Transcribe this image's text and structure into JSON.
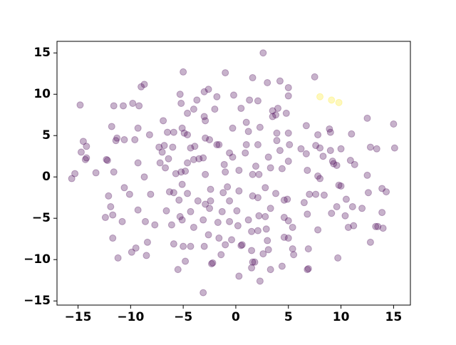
{
  "chart_data": {
    "type": "scatter",
    "xlim": [
      -17,
      16.6
    ],
    "ylim": [
      -15.5,
      16.4
    ],
    "xticks": [
      {
        "value": -15,
        "label": "−15"
      },
      {
        "value": -10,
        "label": "−10"
      },
      {
        "value": -5,
        "label": "−5"
      },
      0,
      5,
      10,
      15
    ],
    "yticks": [
      {
        "value": -15,
        "label": "−15"
      },
      {
        "value": -10,
        "label": "−10"
      },
      {
        "value": -5,
        "label": "−5"
      },
      0,
      5,
      10,
      15
    ],
    "opacity": 0.3,
    "series": [
      {
        "color": "#440154",
        "x": [
          2.6,
          -5,
          -1,
          7.5,
          1.6,
          -8.7,
          -9,
          -2.6,
          -3,
          3,
          4.2,
          5,
          -5.3,
          5,
          1.3,
          2.1,
          -3.7,
          -5.2,
          -1.8,
          -0.2,
          -14.8,
          -11.6,
          -10.7,
          -9.8,
          -9.2,
          -2,
          -4,
          -4.6,
          0.5,
          3.5,
          4,
          3.8,
          3.5,
          4.8,
          -6.9,
          -3,
          -2.9,
          12.5,
          -9.3,
          -9.6,
          -11.8,
          -11.4,
          -11.3,
          -6.5,
          -5.9,
          -5.1,
          -4.6,
          -4.9,
          -2.9,
          -0.3,
          1,
          1.2,
          2.3,
          3.9,
          5,
          6.7,
          7.8,
          8.9,
          9,
          11,
          15,
          -8.2,
          -14.5,
          -14.7,
          -14.3,
          -14.2,
          -14.2,
          -12.2,
          -12.3,
          -10.6,
          -9.3,
          -7,
          -7.3,
          -6.8,
          -6.4,
          -6,
          -4.3,
          -3.9,
          -4,
          -3.1,
          -3.5,
          -2.5,
          -1.6,
          -1.8,
          -0.6,
          -0.3,
          0.9,
          1,
          2.1,
          3.1,
          3.9,
          4.2,
          5.1,
          5,
          6.2,
          6.7,
          7.6,
          8,
          9,
          8.3,
          9.2,
          10,
          10.9,
          11.3,
          12.8,
          13.4,
          15.1,
          -15.6,
          -15.3,
          -13.3,
          -11.6,
          -8.7,
          -7.2,
          -6.7,
          -5.7,
          -5.2,
          -4.6,
          -4.8,
          -2.9,
          -1.1,
          -1,
          0.3,
          1.6,
          1.9,
          2.2,
          3.3,
          4.4,
          6.8,
          7.8,
          9.3,
          9.6,
          8,
          9.8,
          10,
          12.5,
          13.9,
          14.3,
          12.6,
          10.5,
          -12.1,
          -11.9,
          -10.6,
          -10.1,
          -8.1,
          -6.3,
          -5.9,
          -5.4,
          -5.1,
          -4.6,
          -3.6,
          -2.4,
          -2.4,
          -1.2,
          -0.8,
          -0.6,
          0.3,
          1.6,
          2.1,
          2.8,
          3.8,
          4.6,
          4.9,
          6.5,
          7,
          7.6,
          8.4,
          9.6,
          11.1,
          12,
          -2.9,
          -12.4,
          -11.7,
          -10.8,
          -9.3,
          -8.6,
          -7.7,
          -6.6,
          -6.1,
          -5.3,
          -5.1,
          -4.3,
          -4,
          -3.1,
          -2.5,
          -1.7,
          -1.3,
          -0.6,
          0.1,
          0.2,
          1.2,
          1.5,
          2.2,
          2.8,
          3.3,
          2.9,
          2.1,
          4.6,
          5,
          5.4,
          6.8,
          7.8,
          9.1,
          10.7,
          11.2,
          13.3,
          13.5,
          14,
          13.9,
          10.4,
          4.6,
          -11.7,
          -11.2,
          -9.9,
          -9.5,
          -8.5,
          -8.4,
          -5.9,
          -5.5,
          -5,
          -4.8,
          -4.3,
          -3,
          -2.6,
          -2.3,
          -2.2,
          -1.6,
          -1,
          -0.4,
          0.6,
          0.5,
          1.5,
          1.6,
          1.8,
          2.6,
          3,
          3.3,
          4.4,
          5,
          5.4,
          5.5,
          6.8,
          6.9,
          6.9,
          9.7,
          12.8,
          0.3,
          2.3,
          1.5,
          -3.1,
          3.1,
          -1.4
        ],
        "values": [
          15,
          12.7,
          12.6,
          12.1,
          12,
          11.2,
          10.9,
          10.6,
          10.3,
          11.4,
          11.6,
          10.8,
          10,
          9.8,
          9.3,
          9.2,
          9.3,
          8.9,
          9.7,
          9.9,
          8.7,
          8.6,
          8.6,
          8.9,
          8.6,
          8.2,
          8.2,
          7.7,
          8.3,
          8,
          8.3,
          7.5,
          7.3,
          7.7,
          6.8,
          7.3,
          6.8,
          7.1,
          5.9,
          4.5,
          6.1,
          4.4,
          4.7,
          5.4,
          5.4,
          5.9,
          5.1,
          5.3,
          4.7,
          5.9,
          6.6,
          5.5,
          6,
          5.3,
          5.3,
          6.2,
          5.1,
          5.8,
          5.4,
          5.2,
          6.4,
          5.1,
          4.3,
          3,
          2.1,
          3.7,
          2.3,
          2,
          2.1,
          4.5,
          1.7,
          3,
          3.6,
          3.8,
          2.2,
          3.6,
          3.5,
          3.7,
          2.1,
          2.3,
          2.2,
          4.5,
          3.9,
          3.9,
          2.9,
          2.4,
          2.9,
          3.9,
          3.9,
          2.4,
          4.4,
          3.2,
          3.9,
          1.9,
          3.4,
          2.8,
          3.8,
          3.5,
          3.2,
          2.5,
          1.9,
          3.4,
          2,
          1.5,
          3.6,
          3.4,
          3.5,
          -0.2,
          0.4,
          0.5,
          0.6,
          0,
          1.7,
          1.1,
          0.4,
          0.6,
          1.7,
          0.7,
          0.3,
          1.5,
          0.6,
          0.8,
          0.3,
          1.3,
          0.3,
          1.1,
          1,
          0.8,
          0.1,
          1.6,
          1.4,
          -0.2,
          -1,
          -1.1,
          0.2,
          -1.4,
          -1.8,
          -1.9,
          -2.7,
          -2.3,
          -3.6,
          -1.3,
          -2.1,
          -2.1,
          -1.8,
          -1.9,
          -2.8,
          -0.9,
          -2,
          -2.9,
          -2.9,
          -1.5,
          -1.9,
          -1.2,
          -2.9,
          -1.7,
          -2.3,
          -2.5,
          -1.3,
          -2,
          -2.8,
          -2.7,
          -3.1,
          -2.1,
          -2.1,
          -2.2,
          -3.6,
          -3.6,
          -3.8,
          -3.3,
          -4.9,
          -4.6,
          -5.4,
          -4,
          -5.4,
          -5.8,
          -4.1,
          -5.8,
          -4.8,
          -5.2,
          -4.2,
          -6.1,
          -5.2,
          -3.8,
          -5.5,
          -4.2,
          -5.4,
          -4.1,
          -5.9,
          -5.2,
          -6.6,
          -4.7,
          -4.8,
          -3.8,
          -6.3,
          -6.5,
          -4.9,
          -5.3,
          -6.1,
          -4.5,
          -6.4,
          -4.4,
          -6.1,
          -5.9,
          -6,
          -6,
          -6.2,
          -4.3,
          -4.7,
          -7.3,
          -7.4,
          -9.8,
          -9.1,
          -8.6,
          -9.5,
          -7.9,
          -8.1,
          -11.2,
          -8.4,
          -10.2,
          -8.4,
          -8.4,
          -7,
          -10.5,
          -10.4,
          -7.4,
          -8.2,
          -7.6,
          -8.2,
          -8.3,
          -8.9,
          -10.3,
          -10.3,
          -9.3,
          -7.7,
          -11.2,
          -10.8,
          -7.4,
          -8.7,
          -9.4,
          -11.2,
          -11.1,
          -8.7,
          -9.8,
          -7.9,
          -12,
          -12.6,
          -11,
          -14,
          -8.8,
          -9.4
        ]
      },
      {
        "color": "#fde725",
        "x": [
          8,
          9.1,
          9.8
        ],
        "values": [
          9.7,
          9.3,
          9.0
        ]
      }
    ]
  }
}
